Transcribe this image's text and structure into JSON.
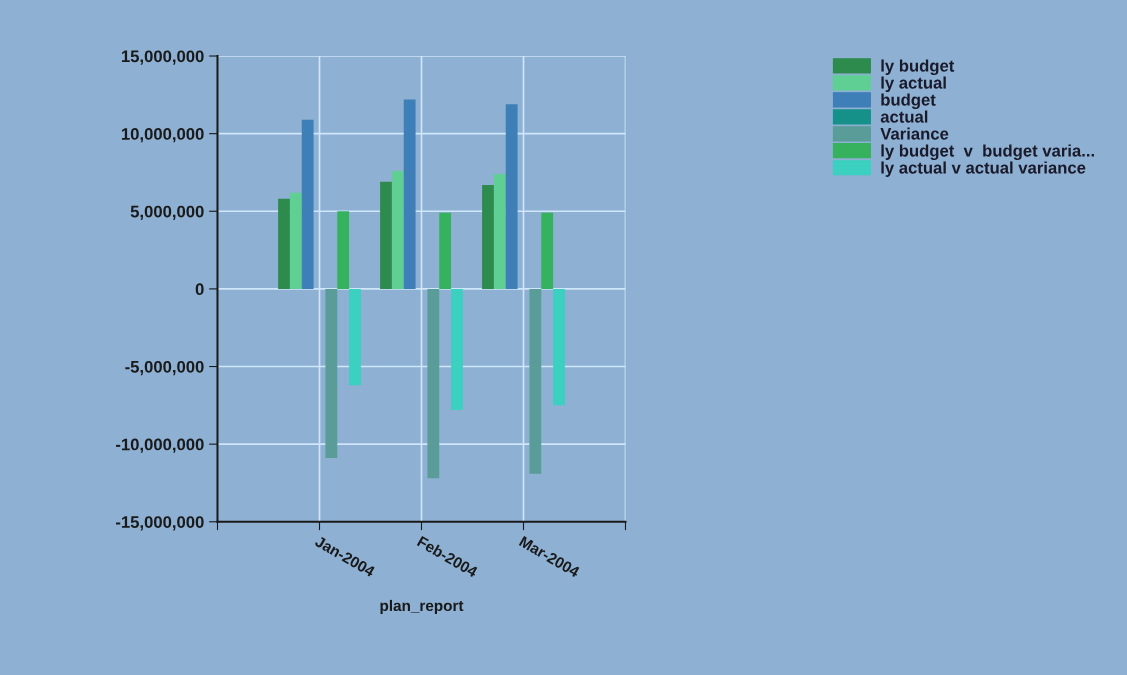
{
  "chart_data": {
    "type": "bar",
    "xlabel": "plan_report",
    "categories": [
      "Jan-2004",
      "Feb-2004",
      "Mar-2004"
    ],
    "series": [
      {
        "name": "ly budget",
        "color": "#2e8b4e",
        "values": [
          5800000,
          6900000,
          6700000
        ]
      },
      {
        "name": "ly actual",
        "color": "#5fcf93",
        "values": [
          6200000,
          7600000,
          7400000
        ]
      },
      {
        "name": "budget",
        "color": "#3f7fb8",
        "values": [
          10900000,
          12200000,
          11900000
        ]
      },
      {
        "name": "actual",
        "color": "#15918a",
        "values": [
          0,
          0,
          0
        ]
      },
      {
        "name": "Variance",
        "color": "#5a9c98",
        "values": [
          -10900000,
          -12200000,
          -11900000
        ]
      },
      {
        "name": "ly budget  v  budget varia...",
        "color": "#36b25e",
        "values": [
          5000000,
          4900000,
          4900000
        ]
      },
      {
        "name": "ly actual v actual variance",
        "color": "#3bd0c0",
        "values": [
          -6200000,
          -7800000,
          -7500000
        ]
      }
    ],
    "ylim": [
      -15000000,
      15000000
    ],
    "yticks": [
      {
        "value": -15000000,
        "label": "-15,000,000"
      },
      {
        "value": -10000000,
        "label": "-10,000,000"
      },
      {
        "value": -5000000,
        "label": "-5,000,000"
      },
      {
        "value": 0,
        "label": "0"
      },
      {
        "value": 5000000,
        "label": "5,000,000"
      },
      {
        "value": 10000000,
        "label": "10,000,000"
      },
      {
        "value": 15000000,
        "label": "15,000,000"
      }
    ],
    "grid": true,
    "legend": "top right"
  }
}
